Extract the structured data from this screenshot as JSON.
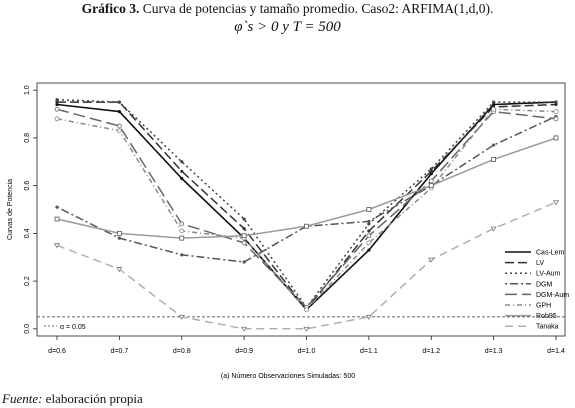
{
  "header": {
    "title_bold": "Gráfico 3.",
    "title_rest": " Curva de potencias y tamaño promedio. Caso2: ARFIMA(1,d,0).",
    "subtitle": "φ`s > 0 y T  =  500"
  },
  "source": {
    "label": "Fuente:",
    "text": " elaboración propia"
  },
  "chart_data": {
    "type": "line",
    "ylabel": "Curvas de Potencia",
    "xlabel": "(a) Número Observaciones Simuladas: 500",
    "categories": [
      "d=0.6",
      "d=0.7",
      "d=0.8",
      "d=0.9",
      "d=1.0",
      "d=1.1",
      "d=1.2",
      "d=1.3",
      "d=1.4"
    ],
    "yticks": [
      "0.0",
      "0.2",
      "0.4",
      "0.6",
      "0.8",
      "1.0"
    ],
    "ylim": [
      -0.03,
      1.03
    ],
    "grid": false,
    "legend_position": "right",
    "reference_line": {
      "label": "α = 0.05",
      "value": 0.05
    },
    "series": [
      {
        "name": "Cas-Lem",
        "color": "#111111",
        "dash": "",
        "width": 1.6,
        "marker": "dot",
        "values": [
          0.94,
          0.91,
          0.63,
          0.38,
          0.08,
          0.33,
          0.65,
          0.94,
          0.95
        ]
      },
      {
        "name": "LV",
        "color": "#333333",
        "dash": "9,4",
        "width": 1.5,
        "marker": "dot",
        "values": [
          0.95,
          0.95,
          0.66,
          0.42,
          0.08,
          0.41,
          0.66,
          0.93,
          0.94
        ]
      },
      {
        "name": "LV-Aum",
        "color": "#444444",
        "dash": "2,3",
        "width": 1.5,
        "marker": "dot",
        "values": [
          0.96,
          0.95,
          0.7,
          0.46,
          0.09,
          0.44,
          0.67,
          0.95,
          0.95
        ]
      },
      {
        "name": "DGM",
        "color": "#555555",
        "dash": "2,3,8,3",
        "width": 1.5,
        "marker": "dot",
        "values": [
          0.51,
          0.38,
          0.31,
          0.28,
          0.43,
          0.45,
          0.6,
          0.77,
          0.89
        ]
      },
      {
        "name": "DGM-Aum",
        "color": "#666666",
        "dash": "12,5",
        "width": 1.5,
        "marker": "o",
        "values": [
          0.92,
          0.85,
          0.44,
          0.36,
          0.09,
          0.39,
          0.62,
          0.91,
          0.88
        ]
      },
      {
        "name": "GPH",
        "color": "#888888",
        "dash": "5,3,1,3",
        "width": 1.5,
        "marker": "o",
        "values": [
          0.88,
          0.83,
          0.41,
          0.38,
          0.08,
          0.36,
          0.59,
          0.92,
          0.91
        ]
      },
      {
        "name": "Rob95",
        "color": "#9a9a9a",
        "dash": "",
        "width": 1.5,
        "marker": "square",
        "values": [
          0.46,
          0.4,
          0.38,
          0.39,
          0.43,
          0.5,
          0.6,
          0.71,
          0.8
        ]
      },
      {
        "name": "Tanaka",
        "color": "#b0b0b0",
        "dash": "8,5",
        "width": 1.5,
        "marker": "tri",
        "values": [
          0.35,
          0.25,
          0.05,
          0.0,
          0.0,
          0.05,
          0.29,
          0.42,
          0.53
        ]
      }
    ]
  }
}
